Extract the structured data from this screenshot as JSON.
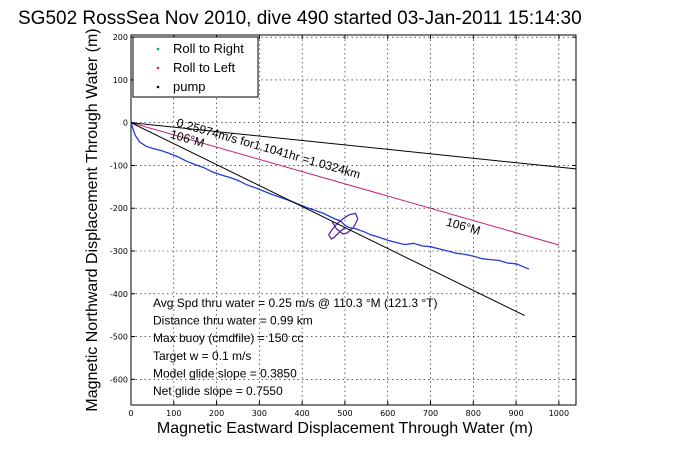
{
  "chart_data": {
    "type": "line",
    "title": "SG502 RossSea Nov 2010, dive 490 started 03-Jan-2011 15:14:30",
    "xlabel": "Magnetic Eastward Displacement Through Water (m)",
    "ylabel": "Magnetic Northward Displacement Through Water (m)",
    "xlim": [
      0,
      1040
    ],
    "ylim": [
      -660,
      205
    ],
    "xticks": [
      0,
      100,
      200,
      300,
      400,
      500,
      600,
      700,
      800,
      900,
      1000
    ],
    "yticks": [
      200,
      100,
      0,
      -100,
      -200,
      -300,
      -400,
      -500,
      -600
    ],
    "grid": true,
    "legend_position": "top-left",
    "legend": [
      {
        "label": "Roll to Right",
        "color": "#00b050"
      },
      {
        "label": "Roll to Left",
        "color": "#e0208c"
      },
      {
        "label": "pump",
        "color": "#000000"
      }
    ],
    "series": [
      {
        "kind": "track",
        "color": "#1f3fd0",
        "x": [
          0,
          5,
          10,
          20,
          35,
          50,
          70,
          90,
          110,
          130,
          150,
          170,
          190,
          210,
          230,
          250,
          270,
          290,
          310,
          330,
          350,
          370,
          390,
          410,
          430,
          450,
          470,
          490,
          500,
          510,
          525,
          545,
          560,
          580,
          600,
          620,
          640,
          660,
          680,
          700,
          720,
          740,
          760,
          780,
          800,
          820,
          840,
          860,
          880,
          900,
          920,
          930
        ],
        "y": [
          0,
          -15,
          -30,
          -45,
          -55,
          -60,
          -65,
          -72,
          -80,
          -90,
          -98,
          -105,
          -115,
          -122,
          -128,
          -135,
          -145,
          -152,
          -160,
          -168,
          -175,
          -182,
          -190,
          -198,
          -205,
          -212,
          -222,
          -230,
          -240,
          -245,
          -248,
          -255,
          -262,
          -268,
          -275,
          -280,
          -285,
          -282,
          -288,
          -290,
          -295,
          -300,
          -305,
          -308,
          -312,
          -318,
          -320,
          -322,
          -328,
          -330,
          -338,
          -342
        ]
      },
      {
        "kind": "loop",
        "color": "#5a2a9a",
        "x": [
          470,
          480,
          495,
          505,
          520,
          530,
          525,
          510,
          495,
          480,
          470,
          462,
          468,
          475,
          485,
          500
        ],
        "y": [
          -232,
          -248,
          -260,
          -258,
          -245,
          -225,
          -212,
          -215,
          -225,
          -238,
          -250,
          -262,
          -272,
          -268,
          -258,
          -245
        ]
      },
      {
        "kind": "line",
        "name": "106°M",
        "color": "#c02080",
        "x": [
          0,
          1000
        ],
        "y": [
          0,
          -286
        ]
      },
      {
        "kind": "line",
        "color": "#000000",
        "x": [
          0,
          1040
        ],
        "y": [
          0,
          -108
        ]
      },
      {
        "kind": "line",
        "color": "#000000",
        "x": [
          0,
          920
        ],
        "y": [
          0,
          -451
        ]
      }
    ],
    "annotations": [
      {
        "text": "0.25974m/s for1.1041hr =1.0324km",
        "x": 105,
        "y": -8,
        "angle": 16
      },
      {
        "text": "106°M",
        "x": 90,
        "y": -35,
        "angle": 16
      },
      {
        "text": "106°M",
        "x": 735,
        "y": -240,
        "angle": 16
      }
    ],
    "stats": [
      "Avg Spd thru water =  0.25 m/s @ 110.3   °M (121.3 °T)",
      "Distance thru water =  0.99 km",
      "Max buoy (cmdfile) = 150 cc",
      "Target w = 0.1 m/s",
      "Model glide slope = 0.3850",
      "Net glide slope = 0.7550"
    ]
  }
}
